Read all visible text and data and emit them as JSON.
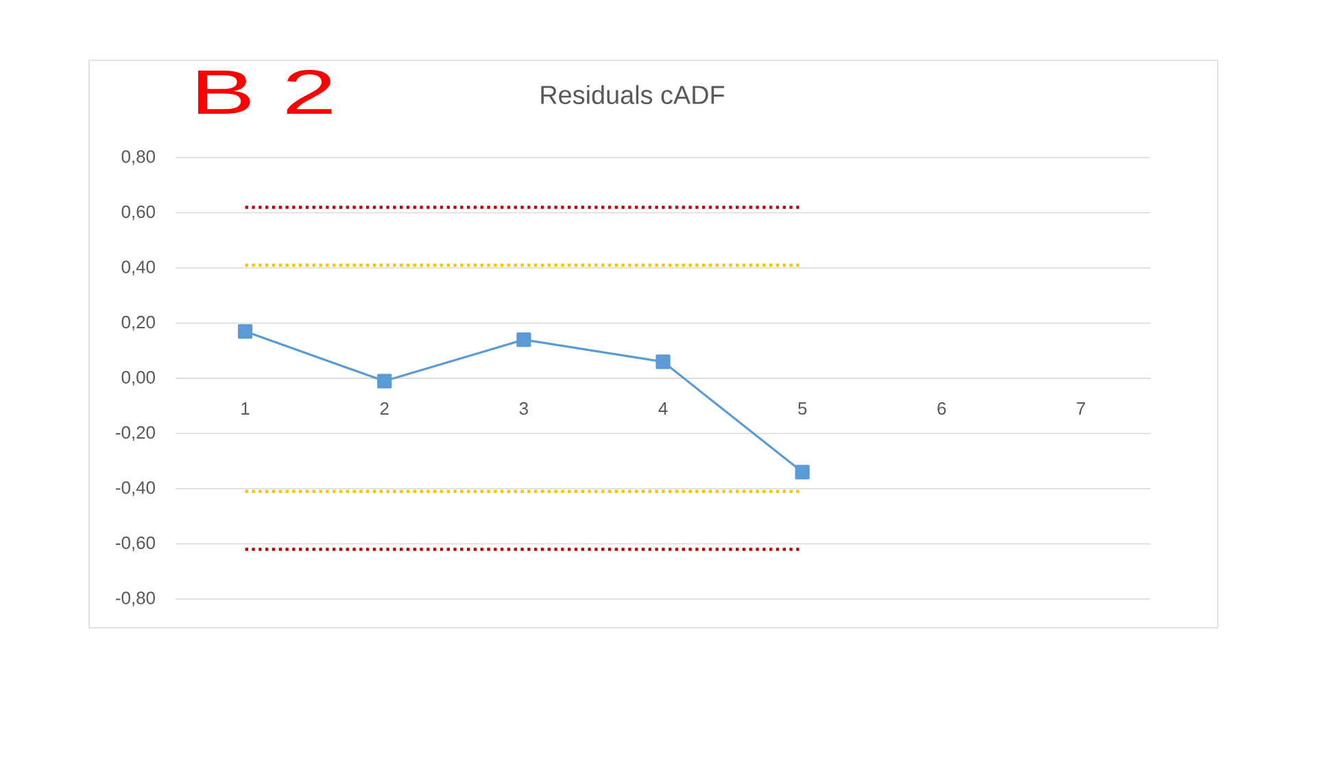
{
  "chart_data": {
    "type": "line",
    "title": "Residuals cADF",
    "annotations": [
      "B 2"
    ],
    "categories": [
      "1",
      "2",
      "3",
      "4",
      "5",
      "6",
      "7"
    ],
    "series": [
      {
        "color": "#5b9bd5",
        "marker": "square",
        "line_style": "solid",
        "values": [
          0.17,
          -0.01,
          0.14,
          0.06,
          -0.34,
          null,
          null
        ]
      },
      {
        "color": "#c00000",
        "marker": "none",
        "line_style": "dotted",
        "values": [
          0.62,
          0.62,
          0.62,
          0.62,
          0.62,
          null,
          null
        ]
      },
      {
        "color": "#ffc000",
        "marker": "none",
        "line_style": "dotted",
        "values": [
          0.41,
          0.41,
          0.41,
          0.41,
          0.41,
          null,
          null
        ]
      },
      {
        "color": "#ffc000",
        "marker": "none",
        "line_style": "dotted",
        "values": [
          -0.41,
          -0.41,
          -0.41,
          -0.41,
          -0.41,
          null,
          null
        ]
      },
      {
        "color": "#c00000",
        "marker": "none",
        "line_style": "dotted",
        "values": [
          -0.62,
          -0.62,
          -0.62,
          -0.62,
          -0.62,
          null,
          null
        ]
      }
    ],
    "ylim": [
      -0.8,
      0.8
    ],
    "yticks": [
      {
        "value": -0.8,
        "label": "-0,80"
      },
      {
        "value": -0.6,
        "label": "-0,60"
      },
      {
        "value": -0.4,
        "label": "-0,40"
      },
      {
        "value": -0.2,
        "label": "-0,20"
      },
      {
        "value": 0,
        "label": "0,00"
      },
      {
        "value": 0.2,
        "label": "0,20"
      },
      {
        "value": 0.4,
        "label": "0,40"
      },
      {
        "value": 0.6,
        "label": "0,60"
      },
      {
        "value": 0.8,
        "label": "0,80"
      }
    ],
    "grid": "y"
  }
}
